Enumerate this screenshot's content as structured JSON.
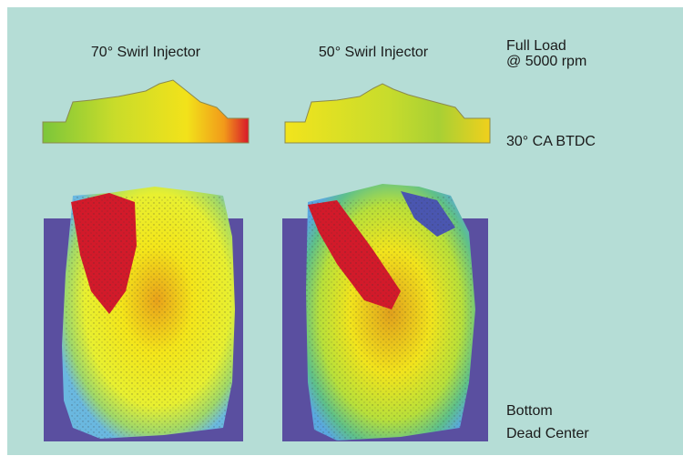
{
  "columns": [
    {
      "title": "70° Swirl Injector"
    },
    {
      "title": "50° Swirl Injector"
    }
  ],
  "condition": {
    "line1": "Full Load",
    "line2": "@ 5000 rpm"
  },
  "rows": [
    {
      "label": "30° CA BTDC"
    },
    {
      "label_line1": "Bottom",
      "label_line2": "Dead Center"
    }
  ]
}
